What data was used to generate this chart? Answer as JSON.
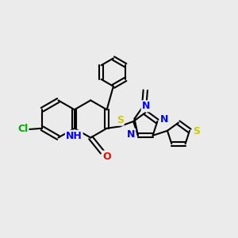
{
  "bg_color": "#ebebeb",
  "bond_color": "#000000",
  "bond_width": 1.5,
  "atom_colors": {
    "N": "#0000ff",
    "O": "#ff0000",
    "S": "#cccc00",
    "Cl": "#00aa00",
    "C": "#000000",
    "H": "#0000ff"
  },
  "font_size": 9,
  "fig_width": 3.0,
  "fig_height": 3.0,
  "dpi": 100
}
